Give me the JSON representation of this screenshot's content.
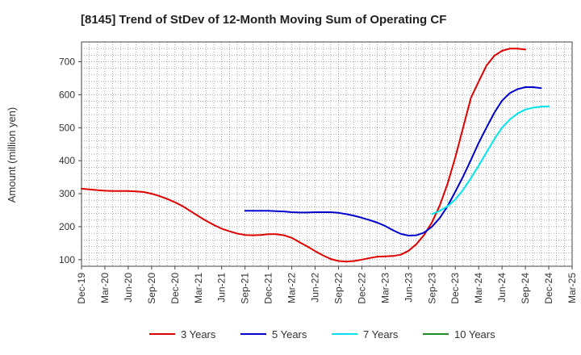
{
  "chart_data": {
    "type": "line",
    "title": "[8145]  Trend of StDev of 12-Month Moving Sum of Operating CF",
    "ylabel": "Amount (million yen)",
    "xlabel": "",
    "ylim": [
      80,
      760
    ],
    "yticks": [
      100,
      200,
      300,
      400,
      500,
      600,
      700
    ],
    "grid": true,
    "legend_position": "bottom",
    "x_ticks": [
      "Dec-19",
      "Mar-20",
      "Jun-20",
      "Sep-20",
      "Dec-20",
      "Mar-21",
      "Jun-21",
      "Sep-21",
      "Dec-21",
      "Mar-22",
      "Jun-22",
      "Sep-22",
      "Dec-22",
      "Mar-23",
      "Jun-23",
      "Sep-23",
      "Dec-23",
      "Mar-24",
      "Jun-24",
      "Sep-24",
      "Dec-24",
      "Mar-25"
    ],
    "series": [
      {
        "name": "3 Years",
        "color": "#e00000",
        "start_index": 0,
        "values": [
          315,
          313,
          311,
          309,
          308,
          308,
          308,
          307,
          305,
          300,
          293,
          284,
          274,
          262,
          247,
          232,
          218,
          205,
          194,
          186,
          179,
          175,
          174,
          175,
          177,
          177,
          174,
          166,
          153,
          140,
          126,
          113,
          102,
          96,
          94,
          96,
          100,
          105,
          109,
          110,
          111,
          115,
          127,
          147,
          175,
          213,
          264,
          330,
          410,
          500,
          590,
          640,
          688,
          718,
          733,
          740,
          740,
          737
        ]
      },
      {
        "name": "5 Years",
        "color": "#0000cc",
        "start_index": 21,
        "values": [
          248,
          248,
          248,
          248,
          247,
          246,
          244,
          243,
          243,
          244,
          244,
          244,
          242,
          238,
          233,
          227,
          220,
          212,
          202,
          189,
          178,
          173,
          174,
          182,
          200,
          226,
          262,
          306,
          352,
          402,
          454,
          500,
          545,
          582,
          605,
          617,
          623,
          623,
          620
        ]
      },
      {
        "name": "7 Years",
        "color": "#00e5ee",
        "start_index": 45,
        "values": [
          238,
          248,
          262,
          282,
          312,
          347,
          385,
          425,
          465,
          500,
          525,
          543,
          555,
          561,
          564,
          565
        ]
      },
      {
        "name": "10 Years",
        "color": "#228b22",
        "start_index": 0,
        "values": []
      }
    ]
  }
}
